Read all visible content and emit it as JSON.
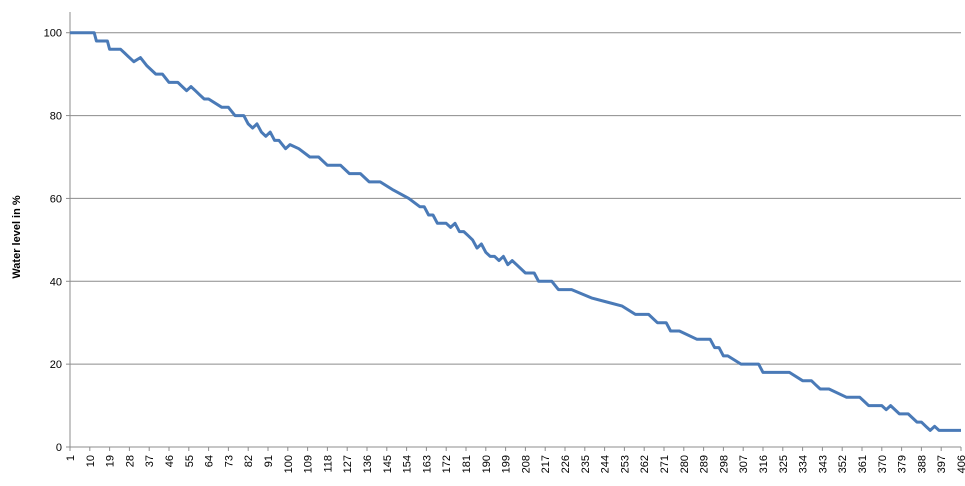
{
  "chart_data": {
    "type": "line",
    "title": "",
    "xlabel": "",
    "ylabel": "Water level in %",
    "ylim": [
      0,
      105
    ],
    "yticks": [
      0,
      20,
      40,
      60,
      80,
      100
    ],
    "grid": "horizontal",
    "legend": "none",
    "series_color": "#4a7ab7",
    "x_tick_labels": [
      "1",
      "10",
      "19",
      "28",
      "37",
      "46",
      "55",
      "64",
      "73",
      "82",
      "91",
      "100",
      "109",
      "118",
      "127",
      "136",
      "145",
      "154",
      "163",
      "172",
      "181",
      "190",
      "199",
      "208",
      "217",
      "226",
      "235",
      "244",
      "253",
      "262",
      "271",
      "280",
      "289",
      "298",
      "307",
      "316",
      "325",
      "334",
      "343",
      "352",
      "361",
      "370",
      "379",
      "388",
      "397",
      "406"
    ],
    "series": [
      {
        "x": [
          1,
          12,
          13,
          18,
          19,
          24,
          26,
          28,
          30,
          33,
          36,
          38,
          40,
          43,
          46,
          50,
          54,
          56,
          58,
          60,
          62,
          64,
          70,
          73,
          76,
          80,
          82,
          84,
          86,
          88,
          90,
          92,
          94,
          96,
          99,
          101,
          105,
          110,
          114,
          118,
          124,
          128,
          133,
          137,
          142,
          148,
          155,
          160,
          162,
          164,
          166,
          168,
          172,
          174,
          176,
          178,
          180,
          182,
          184,
          186,
          188,
          190,
          192,
          194,
          196,
          198,
          200,
          202,
          204,
          208,
          212,
          214,
          216,
          220,
          223,
          229,
          238,
          245,
          252,
          258,
          264,
          268,
          270,
          272,
          274,
          278,
          286,
          292,
          294,
          296,
          298,
          300,
          306,
          308,
          310,
          314,
          316,
          318,
          322,
          328,
          334,
          338,
          340,
          342,
          346,
          354,
          358,
          360,
          362,
          364,
          368,
          370,
          372,
          374,
          378,
          382,
          384,
          386,
          388,
          390,
          392,
          394,
          396,
          400,
          406
        ],
        "values": [
          100,
          100,
          98,
          98,
          96,
          96,
          95,
          94,
          93,
          94,
          92,
          91,
          90,
          90,
          88,
          88,
          86,
          87,
          86,
          85,
          84,
          84,
          82,
          82,
          80,
          80,
          78,
          77,
          78,
          76,
          75,
          76,
          74,
          74,
          72,
          73,
          72,
          70,
          70,
          68,
          68,
          66,
          66,
          64,
          64,
          62,
          60,
          58,
          58,
          56,
          56,
          54,
          54,
          53,
          54,
          52,
          52,
          51,
          50,
          48,
          49,
          47,
          46,
          46,
          45,
          46,
          44,
          45,
          44,
          42,
          42,
          40,
          40,
          40,
          38,
          38,
          36,
          35,
          34,
          32,
          32,
          30,
          30,
          30,
          28,
          28,
          26,
          26,
          24,
          24,
          22,
          22,
          20,
          20,
          20,
          20,
          18,
          18,
          18,
          18,
          16,
          16,
          15,
          14,
          14,
          12,
          12,
          12,
          11,
          10,
          10,
          10,
          9,
          10,
          8,
          8,
          7,
          6,
          6,
          5,
          4,
          5,
          4,
          4,
          4
        ],
        "color": "#4a7ab7"
      }
    ]
  }
}
